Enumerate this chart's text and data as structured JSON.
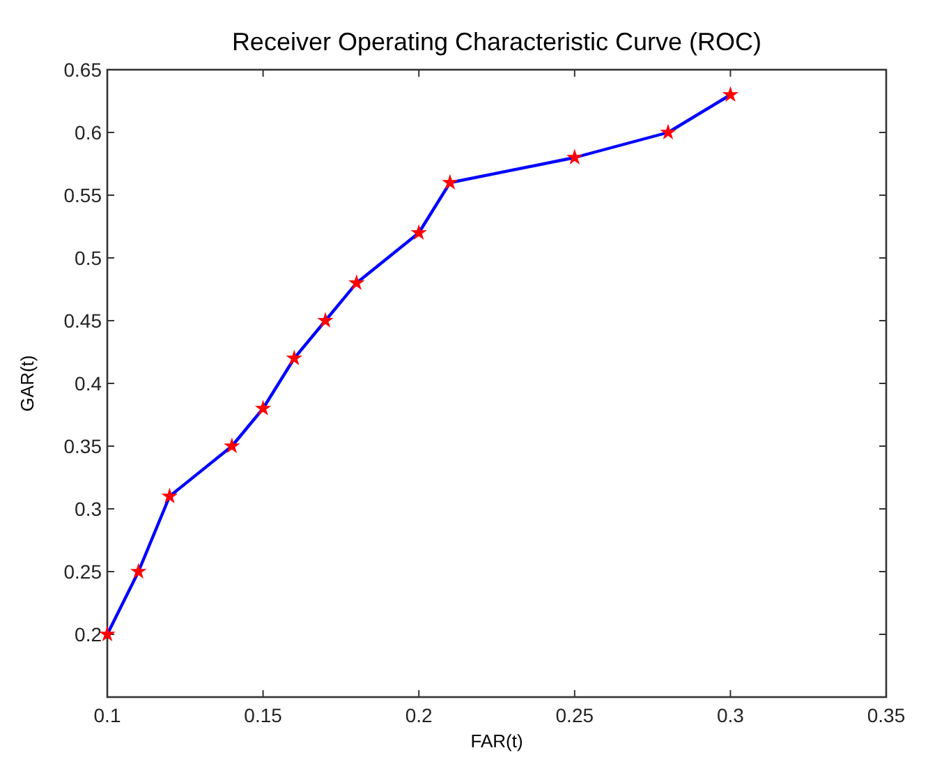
{
  "chart_data": {
    "type": "line",
    "title": "Receiver Operating Characteristic Curve (ROC)",
    "xlabel": "FAR(t)",
    "ylabel": "GAR(t)",
    "x": [
      0.1,
      0.11,
      0.12,
      0.14,
      0.15,
      0.16,
      0.17,
      0.18,
      0.2,
      0.21,
      0.25,
      0.28,
      0.3
    ],
    "series": [
      {
        "color": "#0000ff",
        "values": [
          0.2,
          0.25,
          0.31,
          0.35,
          0.38,
          0.42,
          0.45,
          0.48,
          0.52,
          0.56,
          0.58,
          0.6,
          0.63
        ]
      }
    ],
    "xlim": [
      0.1,
      0.35
    ],
    "xticks": [
      0.1,
      0.15,
      0.2,
      0.25,
      0.3,
      0.35
    ],
    "ylim": [
      0.15,
      0.65
    ],
    "yticks": [
      0.2,
      0.25,
      0.3,
      0.35,
      0.4,
      0.45,
      0.5,
      0.55,
      0.6,
      0.65
    ],
    "grid": false,
    "marker": "star",
    "line_style": "solid"
  }
}
